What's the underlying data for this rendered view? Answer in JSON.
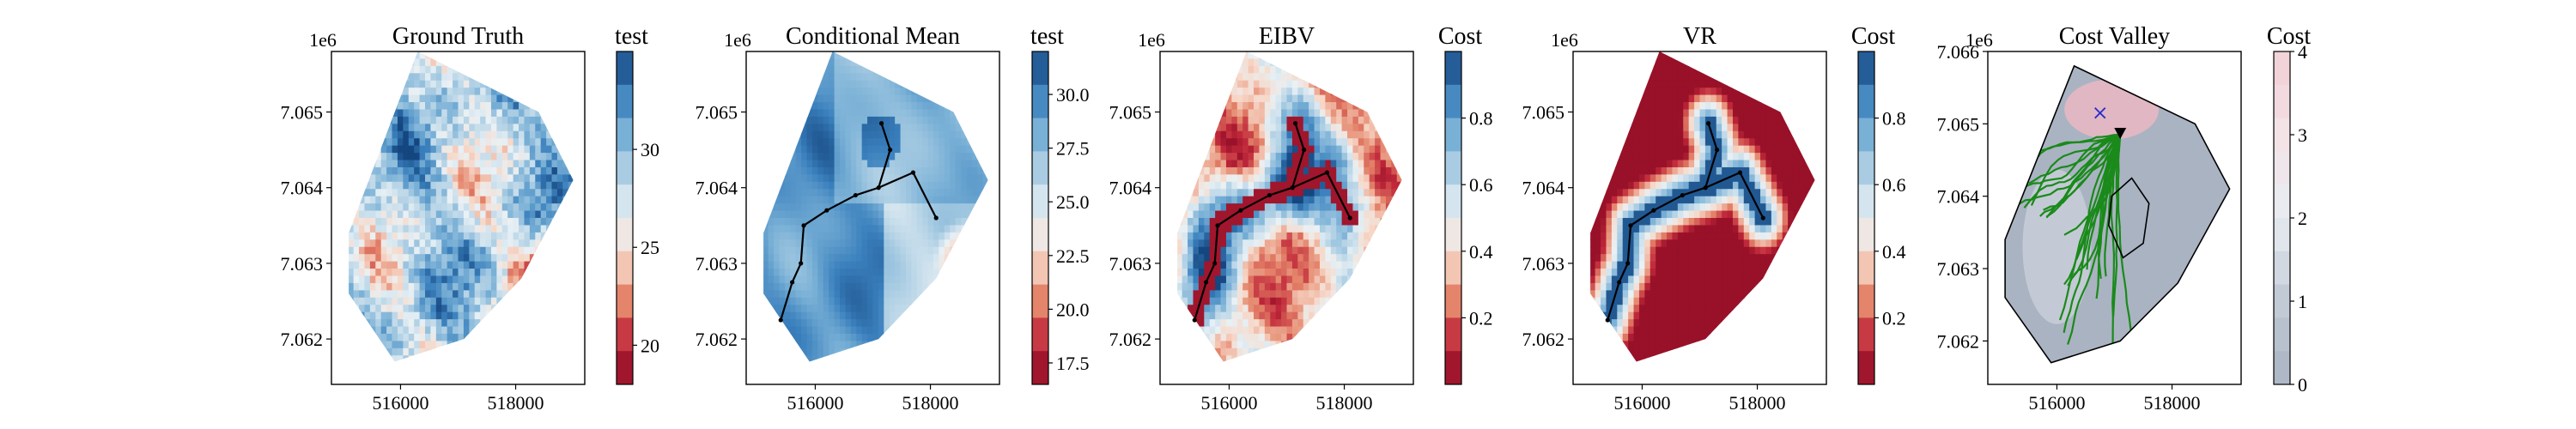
{
  "chart_data": [
    {
      "type": "heatmap",
      "title": "Ground Truth",
      "colorbar_label": "test",
      "colorbar_ticks": [
        "20",
        "25",
        "30"
      ],
      "colorbar_range": [
        18,
        35
      ],
      "colormap": "RdBu",
      "offset_text": "1e6",
      "x_ticks": [
        "516000",
        "518000"
      ],
      "y_ticks": [
        "7.065",
        "7.064",
        "7.063",
        "7.062"
      ],
      "xlim": [
        514800,
        519200
      ],
      "ylim": [
        7061400,
        7065800
      ],
      "path": false
    },
    {
      "type": "heatmap",
      "title": "Conditional Mean",
      "colorbar_label": "test",
      "colorbar_ticks": [
        "17.5",
        "20.0",
        "22.5",
        "25.0",
        "27.5",
        "30.0"
      ],
      "colorbar_range": [
        16.5,
        32
      ],
      "colormap": "RdBu",
      "offset_text": "1e6",
      "x_ticks": [
        "516000",
        "518000"
      ],
      "y_ticks": [
        "7.065",
        "7.064",
        "7.063",
        "7.062"
      ],
      "xlim": [
        514800,
        519200
      ],
      "ylim": [
        7061400,
        7065800
      ],
      "path": true
    },
    {
      "type": "heatmap",
      "title": "EIBV",
      "colorbar_label": "Cost",
      "colorbar_ticks": [
        "0.2",
        "0.4",
        "0.6",
        "0.8"
      ],
      "colorbar_range": [
        0,
        1
      ],
      "colormap": "RdBu",
      "offset_text": "1e6",
      "x_ticks": [
        "516000",
        "518000"
      ],
      "y_ticks": [
        "7.065",
        "7.064",
        "7.063",
        "7.062"
      ],
      "xlim": [
        514800,
        519200
      ],
      "ylim": [
        7061400,
        7065800
      ],
      "path": true
    },
    {
      "type": "heatmap",
      "title": "VR",
      "colorbar_label": "Cost",
      "colorbar_ticks": [
        "0.2",
        "0.4",
        "0.6",
        "0.8"
      ],
      "colorbar_range": [
        0,
        1
      ],
      "colormap": "RdBu",
      "offset_text": "1e6",
      "x_ticks": [
        "516000",
        "518000"
      ],
      "y_ticks": [
        "7.065",
        "7.064",
        "7.063",
        "7.062"
      ],
      "xlim": [
        514800,
        519200
      ],
      "ylim": [
        7061400,
        7065800
      ],
      "path": true
    },
    {
      "type": "heatmap",
      "title": "Cost Valley",
      "colorbar_label": "Cost",
      "colorbar_ticks": [
        "0",
        "1",
        "2",
        "3",
        "4"
      ],
      "colorbar_range": [
        0,
        4
      ],
      "colormap": "BuRd-light",
      "offset_text": "1e6",
      "x_ticks": [
        "516000",
        "518000"
      ],
      "y_ticks": [
        "7.066",
        "7.065",
        "7.064",
        "7.063",
        "7.062"
      ],
      "xlim": [
        514800,
        519200
      ],
      "ylim": [
        7061400,
        7066000
      ],
      "path": false
    }
  ],
  "colors": {
    "path_line": "#000000",
    "tree_branches": "#1a8a1a",
    "cross_marker": "#2a2acc",
    "polygon_outline": "#000000"
  },
  "path_nodes_xy": [
    [
      515400,
      7062250
    ],
    [
      515600,
      7062750
    ],
    [
      515750,
      7063000
    ],
    [
      515800,
      7063500
    ],
    [
      516200,
      7063700
    ],
    [
      516700,
      7063900
    ],
    [
      517100,
      7064000
    ],
    [
      517300,
      7064500
    ],
    [
      517150,
      7064850
    ],
    [
      517700,
      7064200
    ],
    [
      518100,
      7063600
    ]
  ],
  "path_edges": [
    [
      0,
      1
    ],
    [
      1,
      2
    ],
    [
      2,
      3
    ],
    [
      3,
      4
    ],
    [
      4,
      5
    ],
    [
      5,
      6
    ],
    [
      6,
      7
    ],
    [
      7,
      8
    ],
    [
      6,
      9
    ],
    [
      9,
      10
    ]
  ],
  "boundary_xy": [
    [
      516300,
      7065800
    ],
    [
      518400,
      7065000
    ],
    [
      519000,
      7064100
    ],
    [
      518100,
      7062800
    ],
    [
      517100,
      7062000
    ],
    [
      515900,
      7061700
    ],
    [
      515100,
      7062600
    ],
    [
      515100,
      7063400
    ]
  ],
  "obstacle_xy": [
    [
      517300,
      7064250
    ],
    [
      517600,
      7063900
    ],
    [
      517500,
      7063350
    ],
    [
      517150,
      7063150
    ],
    [
      516900,
      7063600
    ],
    [
      516950,
      7064000
    ]
  ],
  "cross_marker_xy": [
    516750,
    7065150
  ],
  "triangle_marker_xy": [
    517100,
    7064850
  ]
}
